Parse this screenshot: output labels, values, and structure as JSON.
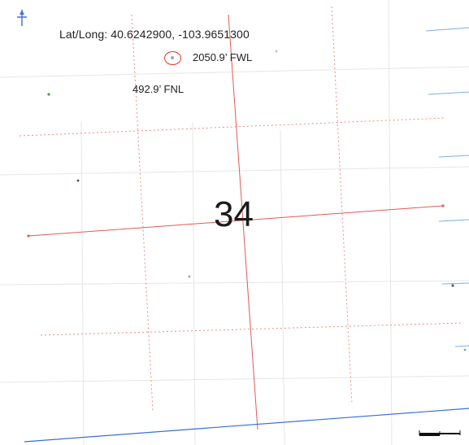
{
  "location": {
    "latlong_label": "Lat/Long:",
    "latitude": "40.6242900",
    "longitude": "-103.9651300",
    "latlong_text": "Lat/Long: 40.6242900, -103.9651300"
  },
  "offsets": {
    "fwl": "2050.9’ FWL",
    "fnl": "492.9’ FNL"
  },
  "section": {
    "number": "34"
  },
  "colors": {
    "section_line": "#e05a5a",
    "quarter_line": "#ee8a8a",
    "survey_line": "#3b6fd8",
    "marker": "#e0392f",
    "north_arrow": "#4a6fd8"
  },
  "icons": {
    "north_arrow": "north-arrow-icon",
    "well": "well-location-icon",
    "scale_bar": "scale-bar-icon"
  }
}
